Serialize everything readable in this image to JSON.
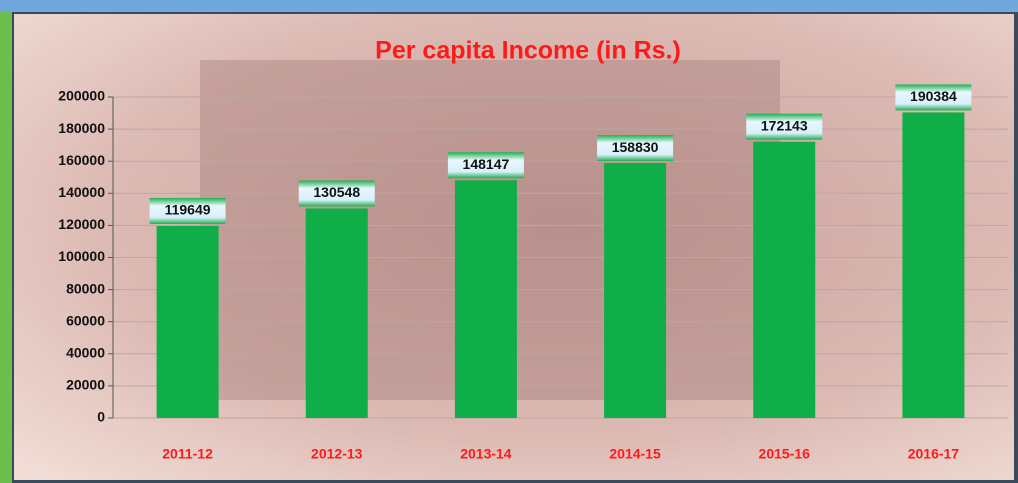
{
  "chart_data": {
    "type": "bar",
    "title": "Per capita Income (in Rs.)",
    "categories": [
      "2011-12",
      "2012-13",
      "2013-14",
      "2014-15",
      "2015-16",
      "2016-17"
    ],
    "values": [
      119649,
      130548,
      148147,
      158830,
      172143,
      190384
    ],
    "color": "#0fae48",
    "ylim": [
      0,
      200000
    ],
    "yticks": [
      0,
      20000,
      40000,
      60000,
      80000,
      100000,
      120000,
      140000,
      160000,
      180000,
      200000
    ],
    "grid": true
  }
}
